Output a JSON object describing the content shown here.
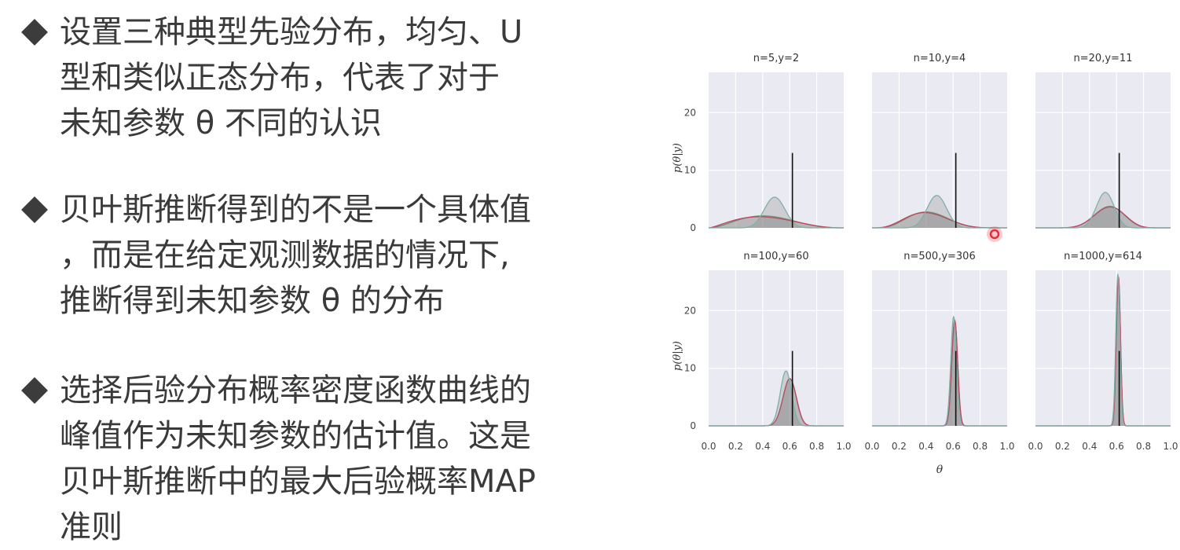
{
  "bullets": [
    {
      "lines": [
        "设置三种典型先验分布，均匀、U",
        "型和类似正态分布，代表了对于",
        "未知参数 θ 不同的认识"
      ]
    },
    {
      "lines": [
        "贝叶斯推断得到的不是一个具体值",
        "，而是在给定观测数据的情况下,",
        "推断得到未知参数 θ 的分布"
      ]
    },
    {
      "lines": [
        "选择后验分布概率密度函数曲线的",
        "峰值作为未知参数的估计值。这是",
        "贝叶斯推断中的最大后验概率MAP",
        "准则"
      ]
    }
  ],
  "chart_data": {
    "type": "area",
    "layout": "2x3 grid of small multiples",
    "xlabel": "θ",
    "ylabel": "p(θ|y)",
    "xlim": [
      0,
      1
    ],
    "ylim": [
      0,
      27
    ],
    "xticks": [
      "0.0",
      "0.2",
      "0.4",
      "0.6",
      "0.8",
      "1.0"
    ],
    "yticks": [
      "0",
      "10",
      "20"
    ],
    "grid": true,
    "true_theta": 0.62,
    "reference_line_height": 13,
    "series_colors": {
      "uniform_prior": "#6a8f6a",
      "u_shaped_prior": "#c0455f",
      "normal_like_prior": "#7fb0a8"
    },
    "panels": [
      {
        "title": "n=5,y=2",
        "n": 5,
        "y": 2
      },
      {
        "title": "n=10,y=4",
        "n": 10,
        "y": 4
      },
      {
        "title": "n=20,y=11",
        "n": 20,
        "y": 11
      },
      {
        "title": "n=100,y=60",
        "n": 100,
        "y": 60
      },
      {
        "title": "n=500,y=306",
        "n": 500,
        "y": 306
      },
      {
        "title": "n=1000,y=614",
        "n": 1000,
        "y": 614
      }
    ]
  },
  "colors": {
    "text": "#3a3a3a",
    "panel_bg": "#eaeaf2",
    "grid": "#ffffff",
    "fill": "#808080",
    "cursor_marker": "#e0303a"
  }
}
